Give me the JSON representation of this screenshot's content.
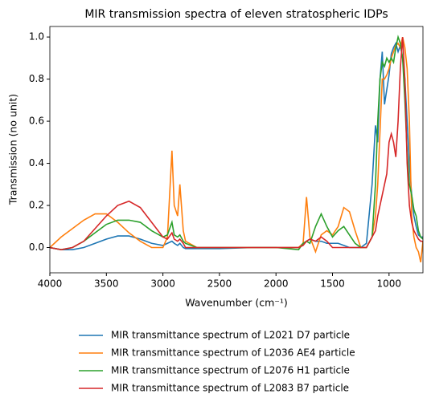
{
  "chart_data": {
    "type": "line",
    "title": "MIR transmission spectra of eleven stratospheric IDPs",
    "x_label": "Wavenumber (cm⁻¹)",
    "y_label": "Transmission (no unit)",
    "x": [
      4000,
      3900,
      3800,
      3700,
      3600,
      3500,
      3400,
      3300,
      3200,
      3100,
      3000,
      2960,
      2920,
      2900,
      2870,
      2850,
      2820,
      2800,
      2700,
      2500,
      2200,
      2000,
      1800,
      1760,
      1730,
      1700,
      1650,
      1600,
      1550,
      1500,
      1450,
      1400,
      1350,
      1300,
      1250,
      1200,
      1150,
      1120,
      1100,
      1080,
      1060,
      1040,
      1020,
      1000,
      980,
      960,
      940,
      920,
      900,
      880,
      860,
      840,
      820,
      800,
      780,
      760,
      740,
      720,
      700
    ],
    "series": [
      {
        "name": "MIR transmittance spectrum of L2021 D7 particle",
        "color": "#1f77b4",
        "values": [
          0,
          -0.01,
          -0.01,
          0,
          0.02,
          0.04,
          0.055,
          0.055,
          0.04,
          0.02,
          0.01,
          0.02,
          0.03,
          0.02,
          0.01,
          0.02,
          0,
          -0.005,
          -0.005,
          -0.005,
          0,
          0,
          0,
          0.02,
          0.03,
          0.04,
          0.03,
          0.03,
          0.02,
          0.02,
          0.02,
          0.01,
          0,
          0,
          0,
          0.02,
          0.3,
          0.58,
          0.5,
          0.8,
          0.93,
          0.68,
          0.75,
          0.82,
          0.92,
          0.95,
          0.97,
          0.93,
          0.96,
          0.9,
          0.8,
          0.6,
          0.4,
          0.25,
          0.15,
          0.1,
          0.06,
          0.05,
          0.05
        ]
      },
      {
        "name": "MIR transmittance spectrum of L2036 AE4 particle",
        "color": "#ff7f0e",
        "values": [
          0,
          0.05,
          0.09,
          0.13,
          0.16,
          0.16,
          0.12,
          0.07,
          0.03,
          0,
          0,
          0.05,
          0.46,
          0.2,
          0.15,
          0.3,
          0.08,
          0.03,
          0,
          0,
          0,
          0,
          0,
          0.02,
          0.24,
          0.05,
          -0.02,
          0.06,
          0.08,
          0.06,
          0.1,
          0.19,
          0.17,
          0.08,
          0,
          0,
          0.05,
          0.15,
          0.3,
          0.55,
          0.8,
          0.8,
          0.82,
          0.85,
          0.9,
          0.93,
          0.96,
          0.97,
          0.95,
          1.0,
          0.95,
          0.85,
          0.6,
          0.15,
          0.05,
          0,
          -0.02,
          -0.07,
          0.03
        ]
      },
      {
        "name": "MIR transmittance spectrum of L2076 H1 particle",
        "color": "#2ca02c",
        "values": [
          0,
          -0.01,
          0,
          0.03,
          0.07,
          0.11,
          0.13,
          0.13,
          0.12,
          0.08,
          0.05,
          0.06,
          0.12,
          0.06,
          0.05,
          0.06,
          0.03,
          0.02,
          0,
          0,
          0,
          0,
          -0.01,
          0.02,
          0.03,
          0.02,
          0.1,
          0.16,
          0.1,
          0.05,
          0.08,
          0.1,
          0.06,
          0.02,
          0,
          0,
          0.05,
          0.3,
          0.6,
          0.8,
          0.88,
          0.86,
          0.9,
          0.88,
          0.9,
          0.88,
          0.95,
          1.0,
          0.97,
          0.9,
          0.7,
          0.45,
          0.3,
          0.25,
          0.18,
          0.15,
          0.08,
          0.05,
          0.04
        ]
      },
      {
        "name": "MIR transmittance spectrum of L2083 B7 particle",
        "color": "#d62728",
        "values": [
          0,
          -0.01,
          0,
          0.03,
          0.09,
          0.15,
          0.2,
          0.22,
          0.19,
          0.12,
          0.05,
          0.04,
          0.07,
          0.04,
          0.03,
          0.04,
          0.02,
          0,
          0,
          0,
          0,
          0,
          0,
          0.01,
          0.03,
          0.04,
          0.03,
          0.05,
          0.03,
          0,
          0,
          0,
          0,
          0,
          0,
          0,
          0.05,
          0.08,
          0.15,
          0.2,
          0.25,
          0.3,
          0.35,
          0.5,
          0.54,
          0.5,
          0.43,
          0.6,
          0.85,
          1.0,
          0.8,
          0.4,
          0.2,
          0.12,
          0.08,
          0.06,
          0.04,
          0.03,
          0.03
        ]
      }
    ],
    "xlim": [
      4000,
      700
    ],
    "ylim": [
      -0.12,
      1.05
    ],
    "xticks": [
      4000,
      3500,
      3000,
      2500,
      2000,
      1500,
      1000
    ],
    "yticks": [
      {
        "value": 0,
        "label": "0.0"
      },
      0.2,
      0.4,
      0.6,
      0.8,
      {
        "value": 1,
        "label": "1.0"
      }
    ],
    "legend": "below"
  }
}
